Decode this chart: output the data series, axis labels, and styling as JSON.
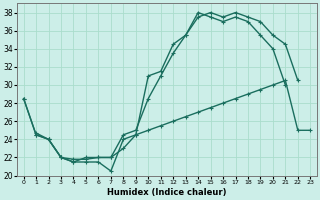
{
  "xlabel": "Humidex (Indice chaleur)",
  "bg_color": "#cceee8",
  "grid_color": "#aaddcc",
  "line_color": "#1a6e5e",
  "xlim": [
    -0.5,
    23.5
  ],
  "ylim": [
    20,
    39
  ],
  "xticks": [
    0,
    1,
    2,
    3,
    4,
    5,
    6,
    7,
    8,
    9,
    10,
    11,
    12,
    13,
    14,
    15,
    16,
    17,
    18,
    19,
    20,
    21,
    22,
    23
  ],
  "yticks": [
    20,
    22,
    24,
    26,
    28,
    30,
    32,
    34,
    36,
    38
  ],
  "line1_x": [
    0,
    1,
    2,
    3,
    4,
    5,
    6,
    7,
    8,
    9,
    10,
    11,
    12,
    13,
    14,
    15,
    16,
    17,
    18,
    19,
    20,
    21
  ],
  "line1_y": [
    28.5,
    24.5,
    24.0,
    22.0,
    21.5,
    21.5,
    21.5,
    20.5,
    24.0,
    24.5,
    31.0,
    31.5,
    34.5,
    35.5,
    38.0,
    37.5,
    37.0,
    37.5,
    37.0,
    35.5,
    34.0,
    30.0
  ],
  "line2_x": [
    0,
    1,
    2,
    3,
    4,
    5,
    6,
    7,
    8,
    9,
    10,
    11,
    12,
    13,
    14,
    15,
    16,
    17,
    18,
    19,
    20,
    21,
    22
  ],
  "line2_y": [
    28.5,
    24.5,
    24.0,
    22.0,
    21.5,
    22.0,
    22.0,
    22.0,
    24.5,
    25.0,
    28.5,
    31.0,
    33.5,
    35.5,
    37.5,
    38.0,
    37.5,
    38.0,
    37.5,
    37.0,
    35.5,
    34.5,
    30.5
  ],
  "line3_x": [
    1,
    2,
    3,
    4,
    5,
    6,
    7,
    8,
    9,
    10,
    11,
    12,
    13,
    14,
    15,
    16,
    17,
    18,
    19,
    20,
    21,
    22,
    23
  ],
  "line3_y": [
    24.7,
    24.0,
    22.0,
    21.8,
    21.8,
    22.0,
    22.0,
    23.0,
    24.5,
    25.0,
    25.5,
    26.0,
    26.5,
    27.0,
    27.5,
    28.0,
    28.5,
    29.0,
    29.5,
    30.0,
    30.5,
    25.0,
    25.0
  ],
  "marker_size": 3,
  "linewidth": 1.0
}
